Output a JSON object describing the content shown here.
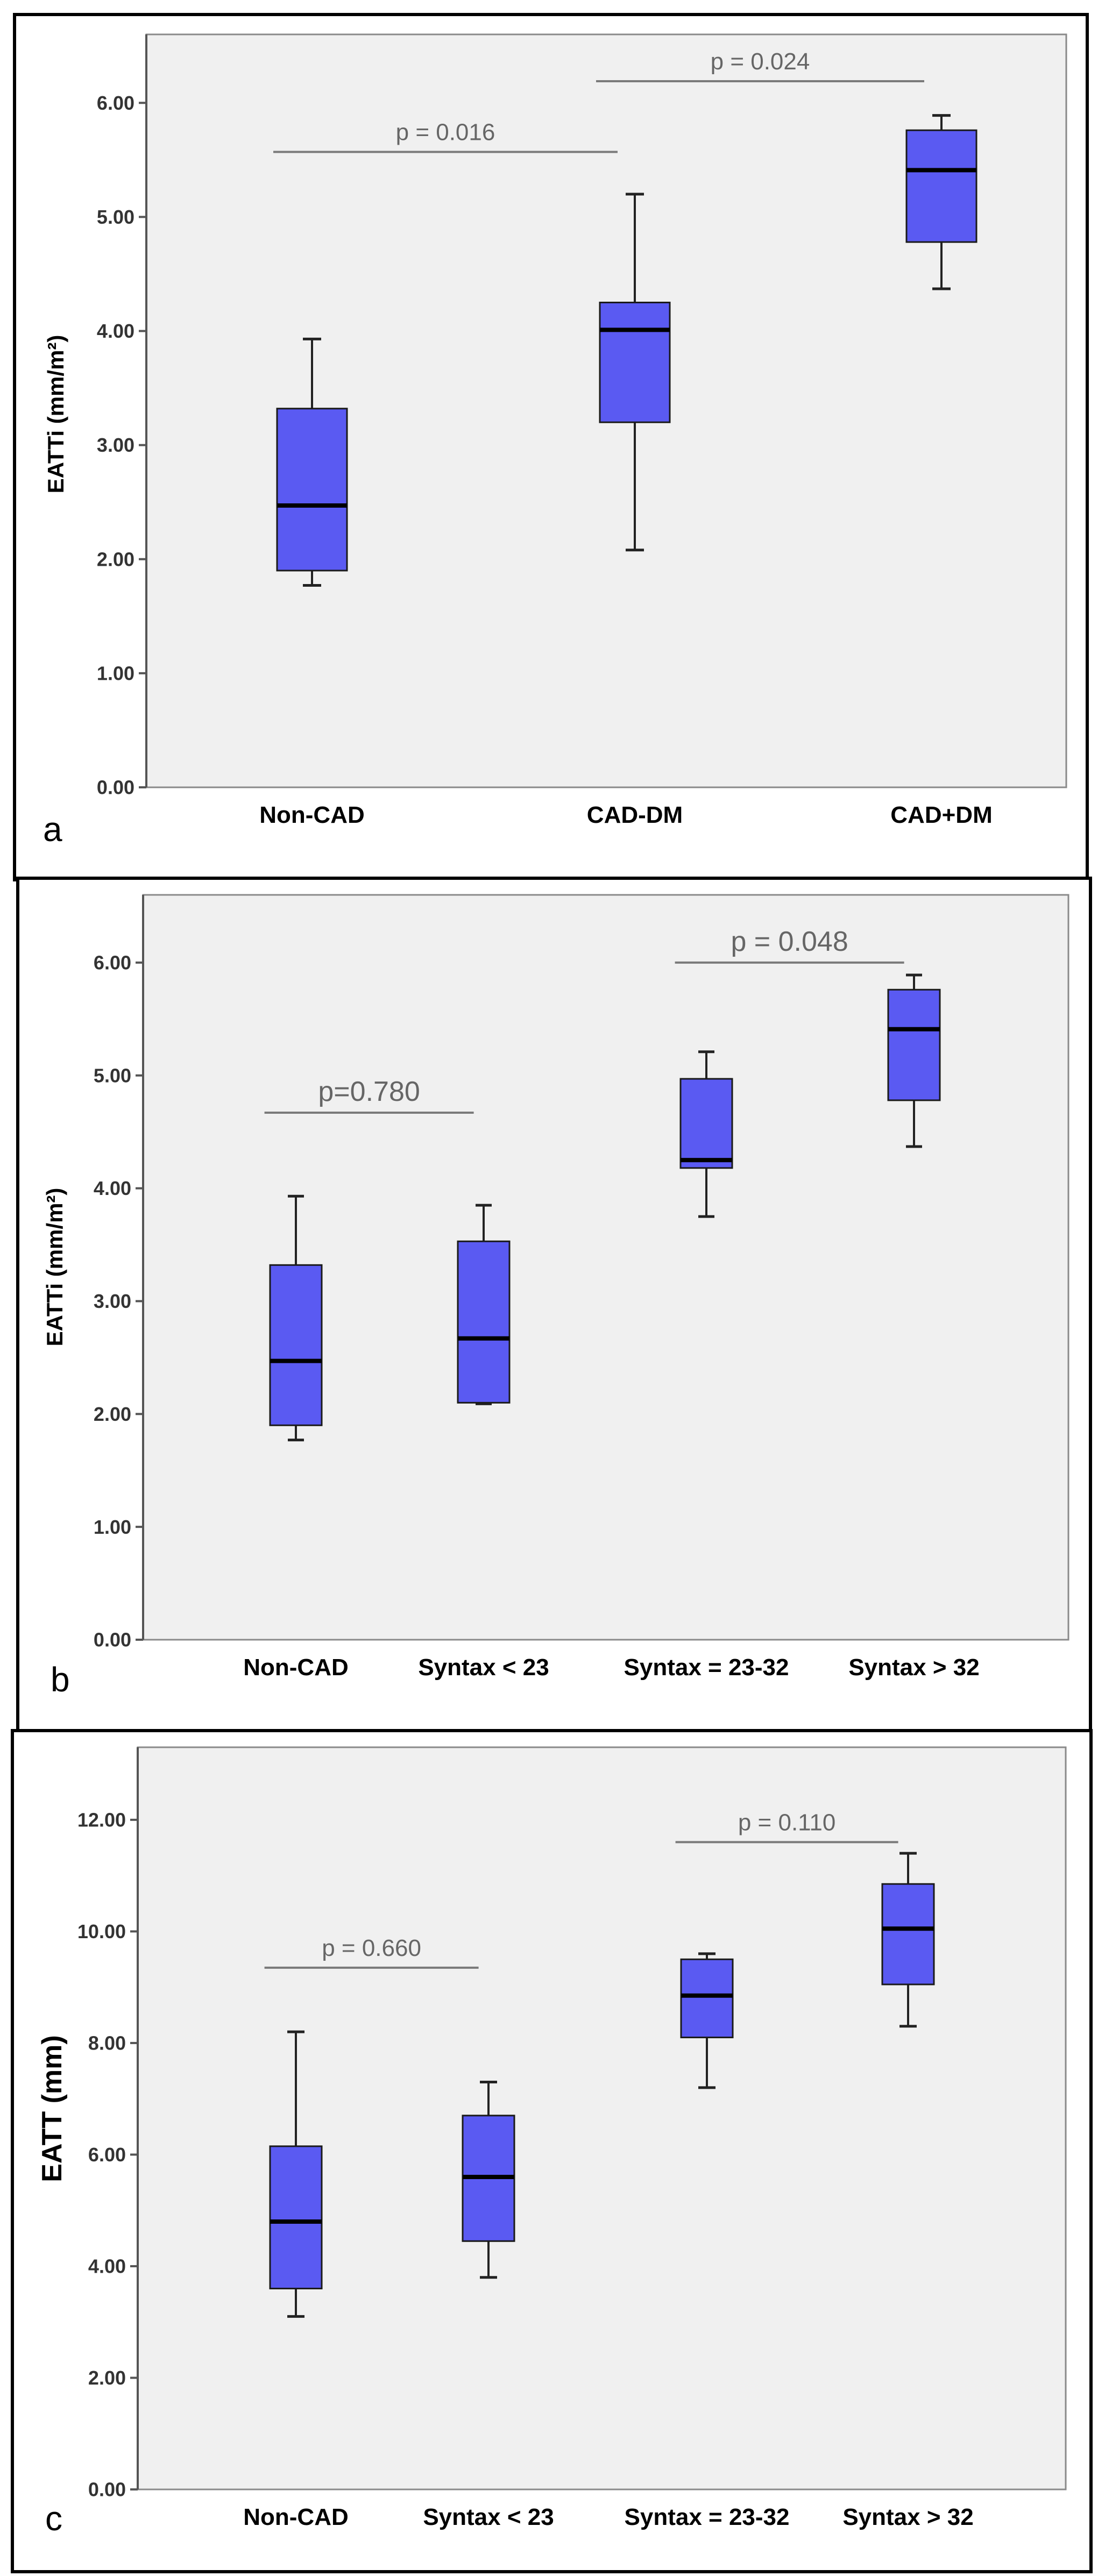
{
  "chart_data": [
    {
      "type": "boxplot",
      "panel_label": "a",
      "ylabel": "EATTi (mm/m²)",
      "ylim": [
        0,
        6.6
      ],
      "yticks": [
        0,
        1,
        2,
        3,
        4,
        5,
        6
      ],
      "ytick_labels": [
        "0.00",
        "1.00",
        "2.00",
        "3.00",
        "4.00",
        "5.00",
        "6.00"
      ],
      "categories": [
        "Non-CAD",
        "CAD-DM",
        "CAD+DM"
      ],
      "boxes": [
        {
          "min": 1.77,
          "q1": 1.9,
          "median": 2.47,
          "q3": 3.32,
          "max": 3.93
        },
        {
          "min": 2.08,
          "q1": 3.2,
          "median": 4.01,
          "q3": 4.25,
          "max": 5.2
        },
        {
          "min": 4.37,
          "q1": 4.78,
          "median": 5.41,
          "q3": 5.76,
          "max": 5.89
        }
      ],
      "annotations": [
        {
          "text": "p = 0.016",
          "from": 0,
          "to": 1,
          "y": 5.57
        },
        {
          "text": "p = 0.024",
          "from": 1,
          "to": 2,
          "y": 6.19
        }
      ]
    },
    {
      "type": "boxplot",
      "panel_label": "b",
      "ylabel": "EATTi (mm/m²)",
      "ylim": [
        0,
        6.6
      ],
      "yticks": [
        0,
        1,
        2,
        3,
        4,
        5,
        6
      ],
      "ytick_labels": [
        "0.00",
        "1.00",
        "2.00",
        "3.00",
        "4.00",
        "5.00",
        "6.00"
      ],
      "categories": [
        "Non-CAD",
        "Syntax < 23",
        "Syntax = 23-32",
        "Syntax > 32"
      ],
      "boxes": [
        {
          "min": 1.77,
          "q1": 1.9,
          "median": 2.47,
          "q3": 3.32,
          "max": 3.93
        },
        {
          "min": 2.09,
          "q1": 2.1,
          "median": 2.67,
          "q3": 3.53,
          "max": 3.85
        },
        {
          "min": 3.75,
          "q1": 4.18,
          "median": 4.25,
          "q3": 4.97,
          "max": 5.21
        },
        {
          "min": 4.37,
          "q1": 4.78,
          "median": 5.41,
          "q3": 5.76,
          "max": 5.89
        }
      ],
      "annotations": [
        {
          "text": "p=0.780",
          "from": 0,
          "to": 1,
          "y": 4.67
        },
        {
          "text": "p = 0.048",
          "from": 2,
          "to": 3,
          "y": 6.0
        }
      ]
    },
    {
      "type": "boxplot",
      "panel_label": "c",
      "ylabel": "EATT (mm)",
      "ylim": [
        0,
        13.3
      ],
      "yticks": [
        0,
        2,
        4,
        6,
        8,
        10,
        12
      ],
      "ytick_labels": [
        "0.00",
        "2.00",
        "4.00",
        "6.00",
        "8.00",
        "10.00",
        "12.00"
      ],
      "categories": [
        "Non-CAD",
        "Syntax < 23",
        "Syntax = 23-32",
        "Syntax > 32"
      ],
      "boxes": [
        {
          "min": 3.1,
          "q1": 3.6,
          "median": 4.8,
          "q3": 6.15,
          "max": 8.2
        },
        {
          "min": 3.8,
          "q1": 4.45,
          "median": 5.6,
          "q3": 6.7,
          "max": 7.3
        },
        {
          "min": 7.2,
          "q1": 8.1,
          "median": 8.85,
          "q3": 9.5,
          "max": 9.6
        },
        {
          "min": 8.3,
          "q1": 9.05,
          "median": 10.05,
          "q3": 10.85,
          "max": 11.4
        }
      ],
      "annotations": [
        {
          "text": "p  = 0.660",
          "from": 0,
          "to": 1,
          "y": 9.35
        },
        {
          "text": "p = 0.110",
          "from": 2,
          "to": 3,
          "y": 11.6
        }
      ]
    }
  ]
}
